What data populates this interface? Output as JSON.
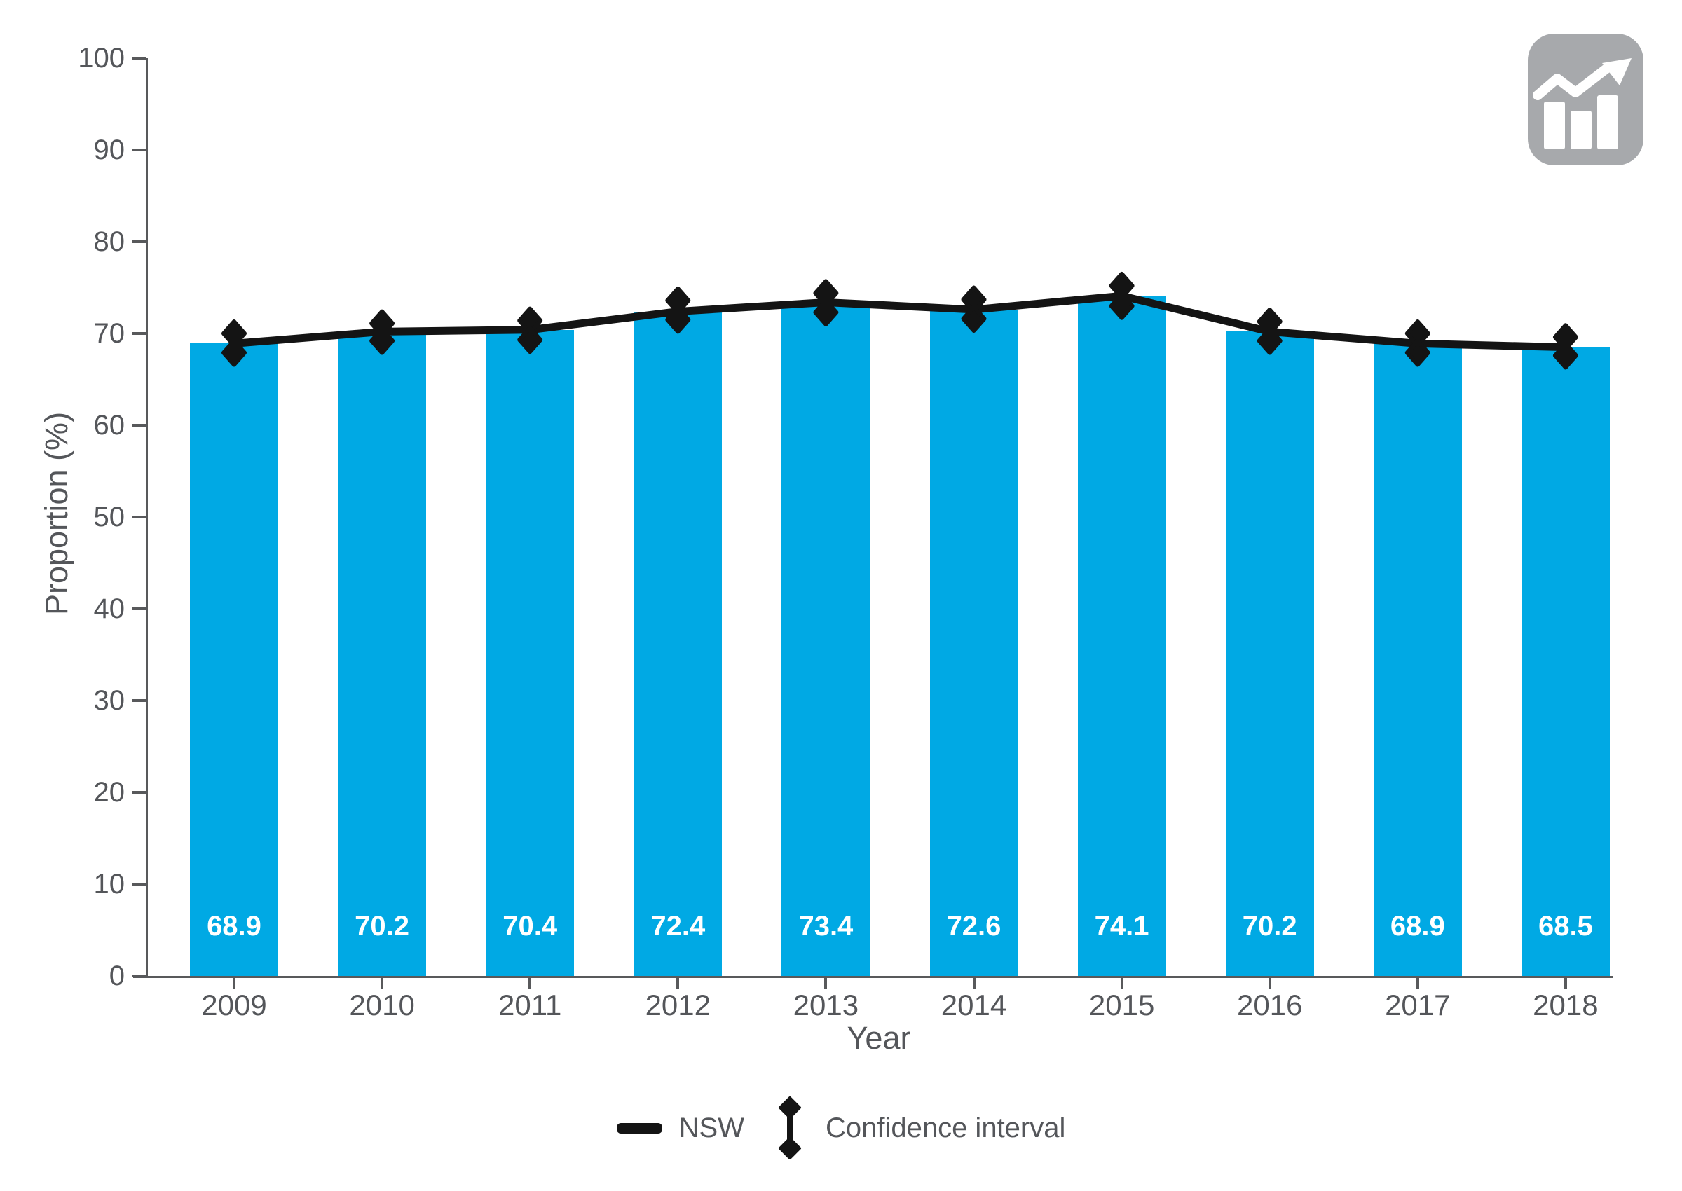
{
  "chart_data": {
    "type": "bar",
    "title": "",
    "xlabel": "Year",
    "ylabel": "Proportion (%)",
    "ylim": [
      0,
      100
    ],
    "yticks": [
      0,
      10,
      20,
      30,
      40,
      50,
      60,
      70,
      80,
      90,
      100
    ],
    "grid": false,
    "legend_position": "bottom",
    "categories": [
      "2009",
      "2010",
      "2011",
      "2012",
      "2013",
      "2014",
      "2015",
      "2016",
      "2017",
      "2018"
    ],
    "series": [
      {
        "name": "Proportion (%)",
        "type": "bar",
        "color": "#00a9e4",
        "values": [
          68.9,
          70.2,
          70.4,
          72.4,
          73.4,
          72.6,
          74.1,
          70.2,
          68.9,
          68.5
        ]
      },
      {
        "name": "NSW",
        "type": "line",
        "color": "#141414",
        "values": [
          68.9,
          70.2,
          70.4,
          72.4,
          73.4,
          72.6,
          74.1,
          70.2,
          68.9,
          68.5
        ]
      },
      {
        "name": "Confidence interval",
        "type": "interval",
        "color": "#141414",
        "upper": [
          70.0,
          71.1,
          71.4,
          73.6,
          74.4,
          73.7,
          75.2,
          71.3,
          70.0,
          69.6
        ],
        "lower": [
          67.9,
          69.2,
          69.3,
          71.5,
          72.3,
          71.6,
          73.0,
          69.2,
          67.9,
          67.6
        ]
      }
    ],
    "bar_labels": [
      "68.9",
      "70.2",
      "70.4",
      "72.4",
      "73.4",
      "72.6",
      "74.1",
      "70.2",
      "68.9",
      "68.5"
    ]
  },
  "axes": {
    "x_title": "Year",
    "y_title": "Proportion (%)"
  },
  "legend": {
    "nsw_label": "NSW",
    "ci_label": "Confidence interval"
  },
  "icon": {
    "name": "trend-chart-icon"
  },
  "colors": {
    "bar": "#00a9e4",
    "line": "#141414",
    "axis": "#58595b",
    "text": "#54565a",
    "bar_label": "#ffffff",
    "icon_bg": "#a7a9ac",
    "icon_glyph": "#ffffff"
  }
}
